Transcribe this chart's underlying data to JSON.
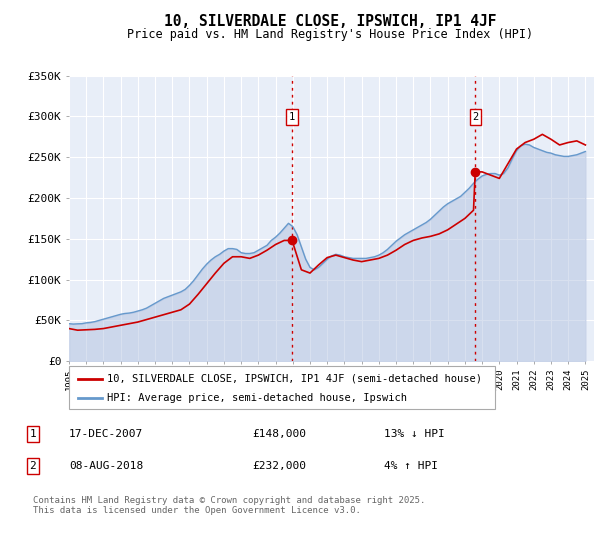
{
  "title": "10, SILVERDALE CLOSE, IPSWICH, IP1 4JF",
  "subtitle": "Price paid vs. HM Land Registry's House Price Index (HPI)",
  "ylim": [
    0,
    350000
  ],
  "yticks": [
    0,
    50000,
    100000,
    150000,
    200000,
    250000,
    300000,
    350000
  ],
  "ytick_labels": [
    "£0",
    "£50K",
    "£100K",
    "£150K",
    "£200K",
    "£250K",
    "£300K",
    "£350K"
  ],
  "bg_color": "#e8eef8",
  "grid_color": "#d0d8e8",
  "sale1_x": 2007.96,
  "sale1_price": 148000,
  "sale2_x": 2018.6,
  "sale2_price": 232000,
  "vline_color": "#cc0000",
  "marker_color": "#cc0000",
  "red_line_color": "#cc0000",
  "blue_line_color": "#6699cc",
  "blue_fill_color": "#aabbdd",
  "legend_label_red": "10, SILVERDALE CLOSE, IPSWICH, IP1 4JF (semi-detached house)",
  "legend_label_blue": "HPI: Average price, semi-detached house, Ipswich",
  "annotation1_date": "17-DEC-2007",
  "annotation1_price": "£148,000",
  "annotation1_hpi": "13% ↓ HPI",
  "annotation2_date": "08-AUG-2018",
  "annotation2_price": "£232,000",
  "annotation2_hpi": "4% ↑ HPI",
  "footer": "Contains HM Land Registry data © Crown copyright and database right 2025.\nThis data is licensed under the Open Government Licence v3.0.",
  "hpi_years": [
    1995,
    1995.25,
    1995.5,
    1995.75,
    1996,
    1996.25,
    1996.5,
    1996.75,
    1997,
    1997.25,
    1997.5,
    1997.75,
    1998,
    1998.25,
    1998.5,
    1998.75,
    1999,
    1999.25,
    1999.5,
    1999.75,
    2000,
    2000.25,
    2000.5,
    2000.75,
    2001,
    2001.25,
    2001.5,
    2001.75,
    2002,
    2002.25,
    2002.5,
    2002.75,
    2003,
    2003.25,
    2003.5,
    2003.75,
    2004,
    2004.25,
    2004.5,
    2004.75,
    2005,
    2005.25,
    2005.5,
    2005.75,
    2006,
    2006.25,
    2006.5,
    2006.75,
    2007,
    2007.25,
    2007.5,
    2007.75,
    2008,
    2008.25,
    2008.5,
    2008.75,
    2009,
    2009.25,
    2009.5,
    2009.75,
    2010,
    2010.25,
    2010.5,
    2010.75,
    2011,
    2011.25,
    2011.5,
    2011.75,
    2012,
    2012.25,
    2012.5,
    2012.75,
    2013,
    2013.25,
    2013.5,
    2013.75,
    2014,
    2014.25,
    2014.5,
    2014.75,
    2015,
    2015.25,
    2015.5,
    2015.75,
    2016,
    2016.25,
    2016.5,
    2016.75,
    2017,
    2017.25,
    2017.5,
    2017.75,
    2018,
    2018.25,
    2018.5,
    2018.75,
    2019,
    2019.25,
    2019.5,
    2019.75,
    2020,
    2020.25,
    2020.5,
    2020.75,
    2021,
    2021.25,
    2021.5,
    2021.75,
    2022,
    2022.25,
    2022.5,
    2022.75,
    2023,
    2023.25,
    2023.5,
    2023.75,
    2024,
    2024.25,
    2024.5,
    2024.75,
    2025
  ],
  "hpi_values": [
    46000,
    45500,
    45800,
    46000,
    47000,
    47500,
    48500,
    50000,
    51500,
    53000,
    54500,
    56000,
    57500,
    58500,
    59000,
    60000,
    61500,
    63000,
    65000,
    68000,
    71000,
    74000,
    77000,
    79000,
    81000,
    83000,
    85000,
    88000,
    93000,
    99000,
    106000,
    113000,
    119000,
    124000,
    128000,
    131000,
    135000,
    138000,
    138000,
    137000,
    133000,
    132000,
    132000,
    133000,
    136000,
    139000,
    142000,
    148000,
    152000,
    157000,
    163000,
    169000,
    165000,
    155000,
    140000,
    125000,
    115000,
    112000,
    115000,
    120000,
    125000,
    129000,
    131000,
    130000,
    128000,
    127000,
    126000,
    126000,
    126000,
    126000,
    127000,
    128000,
    130000,
    133000,
    137000,
    142000,
    147000,
    151000,
    155000,
    158000,
    161000,
    164000,
    167000,
    170000,
    174000,
    179000,
    184000,
    189000,
    193000,
    196000,
    199000,
    202000,
    207000,
    212000,
    218000,
    223000,
    227000,
    229000,
    230000,
    230000,
    228000,
    230000,
    237000,
    248000,
    258000,
    264000,
    266000,
    265000,
    262000,
    260000,
    258000,
    256000,
    255000,
    253000,
    252000,
    251000,
    251000,
    252000,
    253000,
    255000,
    257000
  ],
  "red_years": [
    1995,
    1995.5,
    1996,
    1996.5,
    1997,
    1997.5,
    1998,
    1998.5,
    1999,
    1999.5,
    2000,
    2000.5,
    2001,
    2001.5,
    2002,
    2002.5,
    2003,
    2003.5,
    2004,
    2004.5,
    2005,
    2005.5,
    2006,
    2006.5,
    2007,
    2007.5,
    2007.96,
    2008.5,
    2009,
    2009.5,
    2010,
    2010.5,
    2011,
    2011.5,
    2012,
    2012.5,
    2013,
    2013.5,
    2014,
    2014.5,
    2015,
    2015.5,
    2016,
    2016.5,
    2017,
    2017.5,
    2018,
    2018.5,
    2018.6,
    2019,
    2019.5,
    2020,
    2020.5,
    2021,
    2021.5,
    2022,
    2022.5,
    2023,
    2023.5,
    2024,
    2024.5,
    2025
  ],
  "red_values": [
    40000,
    38000,
    38500,
    39000,
    40000,
    42000,
    44000,
    46000,
    48000,
    51000,
    54000,
    57000,
    60000,
    63000,
    70000,
    82000,
    95000,
    108000,
    120000,
    128000,
    128000,
    126000,
    130000,
    136000,
    143000,
    148000,
    148000,
    112000,
    108000,
    118000,
    127000,
    130000,
    127000,
    124000,
    122000,
    124000,
    126000,
    130000,
    136000,
    143000,
    148000,
    151000,
    153000,
    156000,
    161000,
    168000,
    175000,
    185000,
    232000,
    232000,
    228000,
    224000,
    242000,
    260000,
    268000,
    272000,
    278000,
    272000,
    265000,
    268000,
    270000,
    265000
  ]
}
